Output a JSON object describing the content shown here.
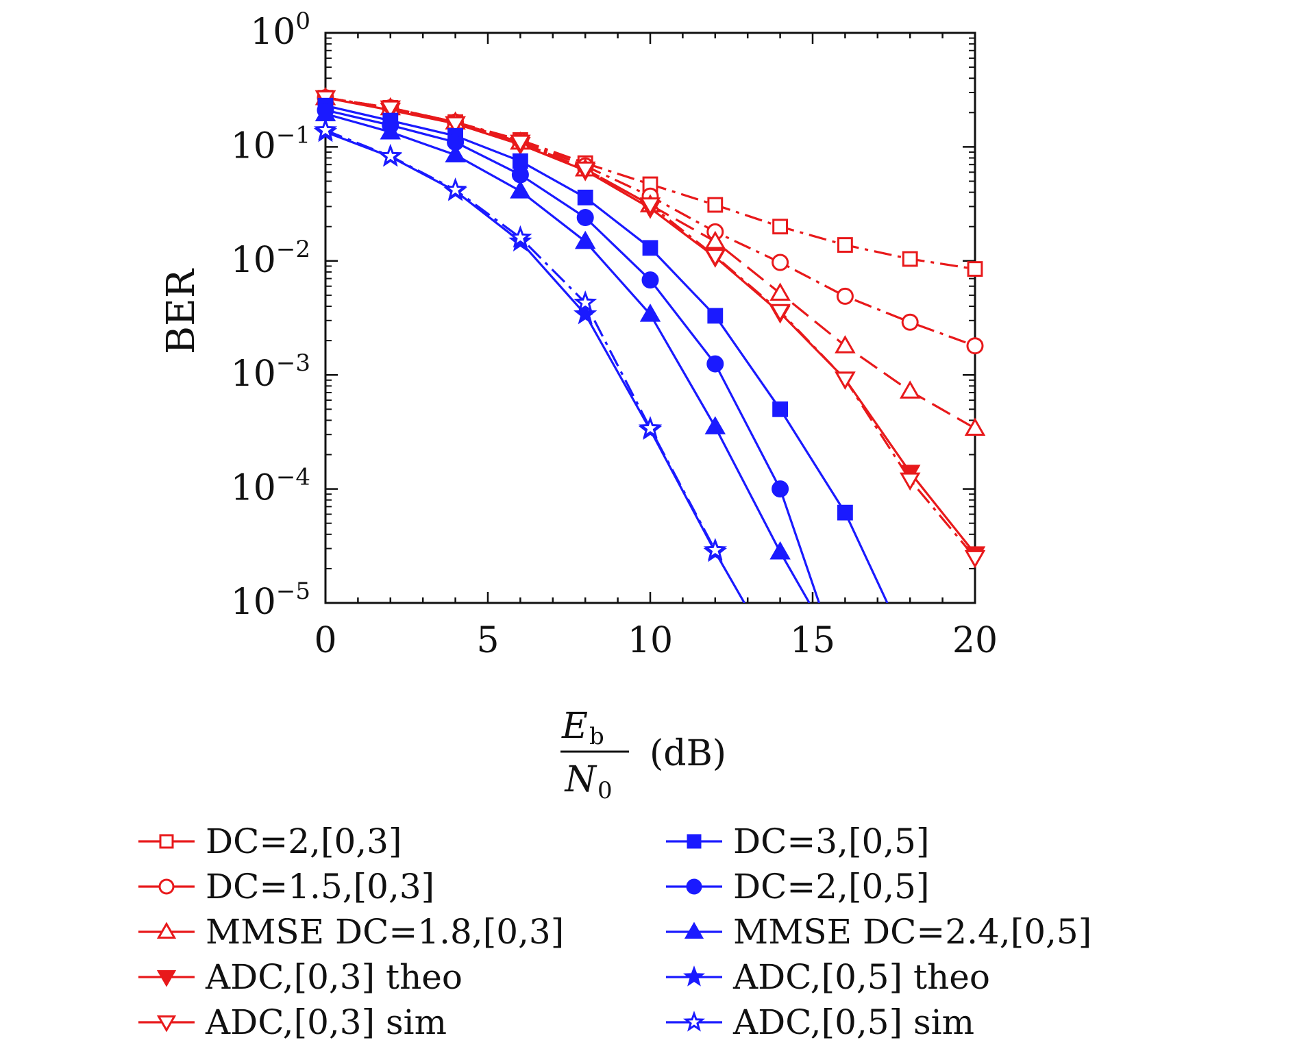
{
  "chart_data": {
    "type": "line",
    "xlabel_num": "E",
    "xlabel_num_sub": "b",
    "xlabel_den": "N",
    "xlabel_den_sub": "0",
    "xlabel_unit": "(dB)",
    "ylabel": "BER",
    "xlim": [
      0,
      20
    ],
    "ylim": [
      1e-05,
      1
    ],
    "yscale": "log",
    "x_ticks": [
      "0",
      "5",
      "10",
      "15",
      "20"
    ],
    "y_ticks": [
      {
        "base": "10",
        "exp": "0"
      },
      {
        "base": "10",
        "exp": "−1"
      },
      {
        "base": "10",
        "exp": "−2"
      },
      {
        "base": "10",
        "exp": "−3"
      },
      {
        "base": "10",
        "exp": "−4"
      },
      {
        "base": "10",
        "exp": "−5"
      }
    ],
    "grid": false,
    "legend_position": "bottom, two columns",
    "series": [
      {
        "name": "DC=2,[0,3]",
        "color": "#e8191b",
        "marker": "square-open",
        "dash": "dashdot",
        "x": [
          0,
          2,
          4,
          6,
          8,
          10,
          12,
          14,
          16,
          18,
          20
        ],
        "y": [
          0.27,
          0.22,
          0.165,
          0.115,
          0.072,
          0.047,
          0.031,
          0.02,
          0.0138,
          0.0104,
          0.0085
        ]
      },
      {
        "name": "DC=1.5,[0,3]",
        "color": "#e8191b",
        "marker": "circle-open",
        "dash": "dashdot",
        "x": [
          0,
          2,
          4,
          6,
          8,
          10,
          12,
          14,
          16,
          18,
          20
        ],
        "y": [
          0.27,
          0.22,
          0.165,
          0.113,
          0.068,
          0.037,
          0.018,
          0.0097,
          0.0049,
          0.0029,
          0.0018
        ]
      },
      {
        "name": "MMSE DC=1.8,[0,3]",
        "color": "#e8191b",
        "marker": "triangle-up-open",
        "dash": "longdash",
        "x": [
          0,
          2,
          4,
          6,
          8,
          10,
          12,
          14,
          16,
          18,
          20
        ],
        "y": [
          0.27,
          0.22,
          0.165,
          0.11,
          0.064,
          0.031,
          0.0148,
          0.0052,
          0.0018,
          0.00072,
          0.00034
        ]
      },
      {
        "name": "ADC,[0,3] theo",
        "color": "#e8191b",
        "marker": "triangle-down-filled",
        "dash": "solid",
        "x": [
          0,
          2,
          4,
          6,
          8,
          10,
          12,
          14,
          16,
          18,
          20
        ],
        "y": [
          0.27,
          0.21,
          0.16,
          0.105,
          0.062,
          0.029,
          0.0108,
          0.0035,
          0.00092,
          0.00014,
          2.7e-05
        ]
      },
      {
        "name": "ADC,[0,3] sim",
        "color": "#e8191b",
        "marker": "triangle-down-open",
        "dash": "dashdot",
        "x": [
          0,
          2,
          4,
          6,
          8,
          10,
          12,
          14,
          16,
          18,
          20
        ],
        "y": [
          0.27,
          0.22,
          0.16,
          0.11,
          0.064,
          0.031,
          0.011,
          0.0036,
          0.00092,
          0.00012,
          2.5e-05
        ]
      },
      {
        "name": "DC=3,[0,5]",
        "color": "#1a1aff",
        "marker": "square-filled",
        "dash": "solid",
        "x": [
          0,
          2,
          4,
          6,
          8,
          10,
          12,
          14,
          16,
          17.3
        ],
        "y": [
          0.23,
          0.17,
          0.125,
          0.075,
          0.036,
          0.013,
          0.0033,
          0.0005,
          6.2e-05,
          1e-05
        ]
      },
      {
        "name": "DC=2,[0,5]",
        "color": "#1a1aff",
        "marker": "circle-filled",
        "dash": "solid",
        "x": [
          0,
          2,
          4,
          6,
          8,
          10,
          12,
          14,
          15.2
        ],
        "y": [
          0.21,
          0.155,
          0.11,
          0.057,
          0.024,
          0.0068,
          0.00125,
          0.0001,
          1e-05
        ]
      },
      {
        "name": "MMSE DC=2.4,[0,5]",
        "color": "#1a1aff",
        "marker": "triangle-up-filled",
        "dash": "solid",
        "x": [
          0,
          2,
          4,
          6,
          8,
          10,
          12,
          14,
          14.9
        ],
        "y": [
          0.195,
          0.135,
          0.085,
          0.041,
          0.0148,
          0.0034,
          0.00035,
          2.8e-05,
          1e-05
        ]
      },
      {
        "name": "ADC,[0,5] theo",
        "color": "#1a1aff",
        "marker": "star-filled",
        "dash": "solid",
        "x": [
          0,
          2,
          4,
          6,
          8,
          10,
          12,
          12.9
        ],
        "y": [
          0.135,
          0.082,
          0.041,
          0.0148,
          0.0034,
          0.00033,
          2.8e-05,
          1e-05
        ]
      },
      {
        "name": "ADC,[0,5] sim",
        "color": "#1a1aff",
        "marker": "star-open",
        "dash": "dashdot",
        "x": [
          0,
          2,
          4,
          6,
          8,
          10,
          12
        ],
        "y": [
          0.14,
          0.083,
          0.042,
          0.016,
          0.0043,
          0.00034,
          2.9e-05
        ]
      }
    ]
  }
}
